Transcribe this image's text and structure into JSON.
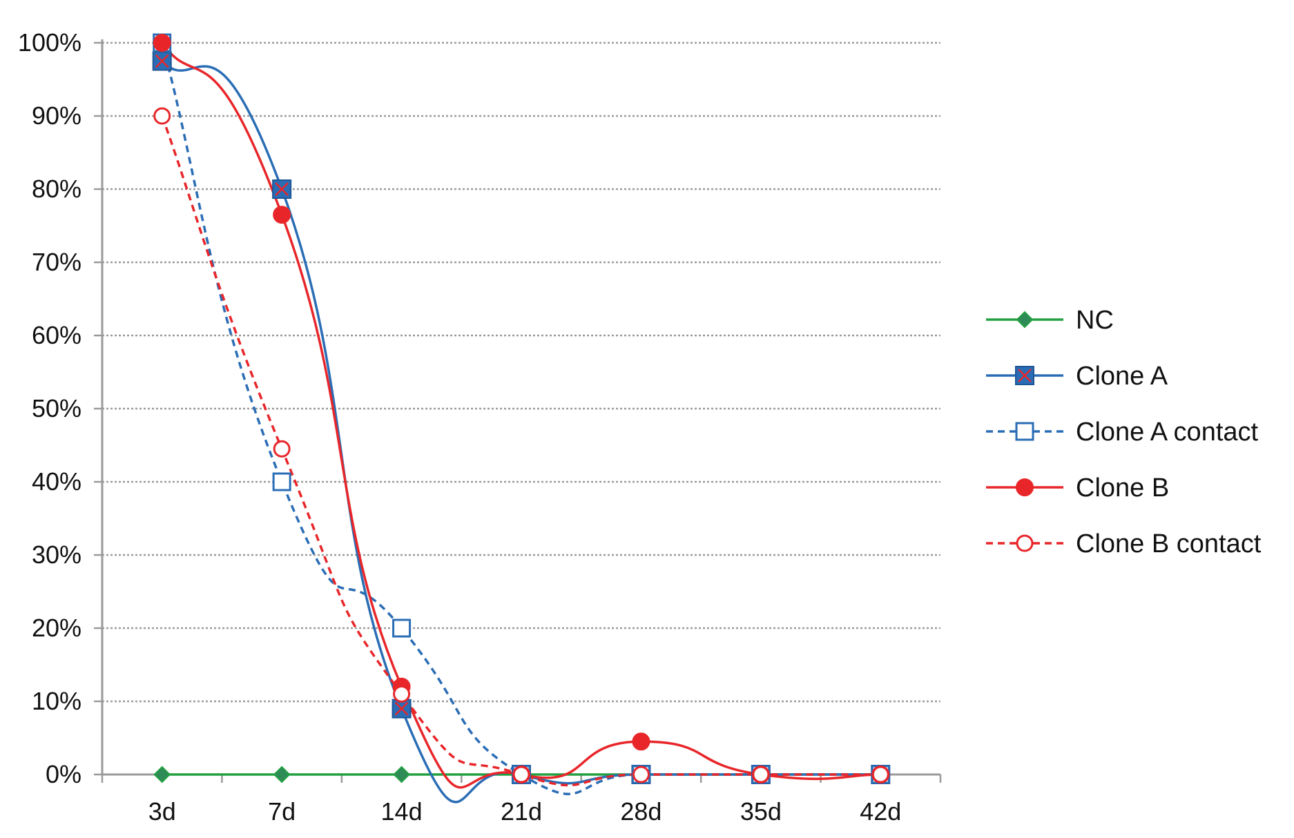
{
  "chart_data": {
    "type": "line",
    "categories": [
      "3d",
      "7d",
      "14d",
      "21d",
      "28d",
      "35d",
      "42d"
    ],
    "y_tick_labels": [
      "0%",
      "10%",
      "20%",
      "30%",
      "40%",
      "50%",
      "60%",
      "70%",
      "80%",
      "90%",
      "100%"
    ],
    "ylim": [
      0,
      100
    ],
    "grid": true,
    "legend_position": "right",
    "series": [
      {
        "name": "NC",
        "values": [
          0,
          0,
          0,
          0,
          0,
          0,
          0
        ],
        "color": "#22a040",
        "marker": "diamond",
        "marker_fill": "#2e8b57",
        "marker_stroke": "#22a040",
        "dashed": false
      },
      {
        "name": "Clone A",
        "values": [
          97.5,
          80,
          9,
          0,
          0,
          0,
          0
        ],
        "color": "#2a6db5",
        "marker": "square-x",
        "marker_fill": "#2a6db5",
        "marker_stroke": "#2a6db5",
        "dashed": false
      },
      {
        "name": "Clone A contact",
        "values": [
          100,
          40,
          20,
          0,
          0,
          0,
          0
        ],
        "color": "#2a6db5",
        "marker": "square-open",
        "marker_fill": "#ffffff",
        "marker_stroke": "#2a6db5",
        "dashed": true
      },
      {
        "name": "Clone B",
        "values": [
          100,
          76.5,
          12,
          0,
          4.5,
          0,
          0
        ],
        "color": "#e8262a",
        "marker": "circle",
        "marker_fill": "#e8262a",
        "marker_stroke": "#e8262a",
        "dashed": false
      },
      {
        "name": "Clone B contact",
        "values": [
          90,
          44.5,
          11,
          0,
          0,
          0,
          0
        ],
        "color": "#e8262a",
        "marker": "circle-open",
        "marker_fill": "#ffffff",
        "marker_stroke": "#e8262a",
        "dashed": true
      }
    ]
  }
}
